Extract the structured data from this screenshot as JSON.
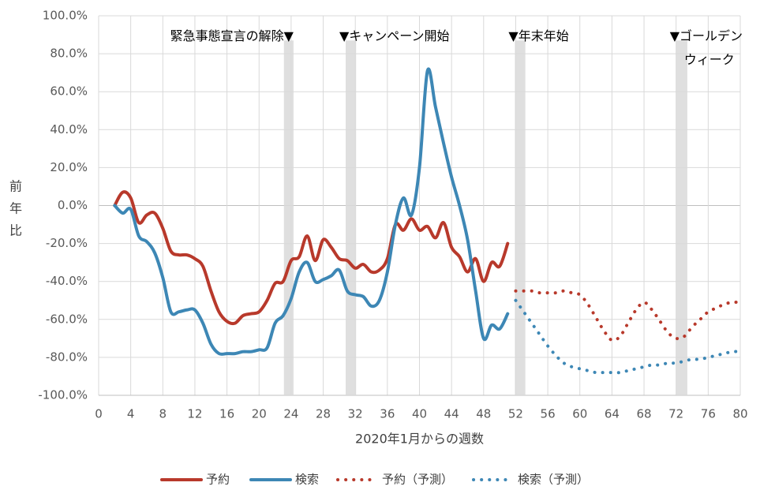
{
  "chart_data": {
    "type": "line",
    "y_label": "前年比",
    "x_label": "2020年1月からの週数",
    "xlim": [
      0,
      80
    ],
    "xticks": [
      0,
      4,
      8,
      12,
      16,
      20,
      24,
      28,
      32,
      36,
      40,
      44,
      48,
      52,
      56,
      60,
      64,
      68,
      72,
      76,
      80
    ],
    "ylim": [
      -100,
      100
    ],
    "yticks": [
      {
        "value": -100,
        "label": "-100.0%"
      },
      {
        "value": -80,
        "label": "-80.0%"
      },
      {
        "value": -60,
        "label": "-60.0%"
      },
      {
        "value": -40,
        "label": "-40.0%"
      },
      {
        "value": -20,
        "label": "-20.0%"
      },
      {
        "value": 0,
        "label": "0.0%"
      },
      {
        "value": 20,
        "label": "20.0%"
      },
      {
        "value": 40,
        "label": "40.0%"
      },
      {
        "value": 60,
        "label": "60.0%"
      },
      {
        "value": 80,
        "label": "80.0%"
      },
      {
        "value": 100,
        "label": "100.0%"
      }
    ],
    "grid": true,
    "legend": "bottom",
    "events": [
      {
        "text": [
          "緊急事態宣言の解除▼"
        ],
        "weeks": [
          23.1,
          24.3
        ],
        "align": "end"
      },
      {
        "text": [
          "▼キャンペーン開始"
        ],
        "weeks": [
          30.8,
          32.1
        ],
        "align": "start"
      },
      {
        "text": [
          "▼年末年始"
        ],
        "weeks": [
          51.9,
          53.2
        ],
        "align": "start"
      },
      {
        "text": [
          "▼ゴールデン",
          "ウィーク"
        ],
        "weeks": [
          72,
          73.4
        ],
        "align": "start"
      }
    ],
    "series": [
      {
        "name": "予約",
        "color": "#b8392b",
        "style": "solid",
        "x": [
          2,
          3,
          4,
          5,
          6,
          7,
          8,
          9,
          10,
          11,
          12,
          13,
          14,
          15,
          16,
          17,
          18,
          19,
          20,
          21,
          22,
          23,
          24,
          25,
          26,
          27,
          28,
          29,
          30,
          31,
          32,
          33,
          34,
          35,
          36,
          37,
          38,
          39,
          40,
          41,
          42,
          43,
          44,
          45,
          46,
          47,
          48,
          49,
          50,
          51
        ],
        "values": [
          0,
          7,
          4,
          -9,
          -5,
          -4,
          -12,
          -24,
          -26,
          -26,
          -28,
          -32,
          -45,
          -56,
          -61,
          -62,
          -58,
          -57,
          -56,
          -50,
          -41,
          -40,
          -29,
          -27,
          -16,
          -29,
          -18,
          -22,
          -28,
          -29,
          -33,
          -31,
          -35,
          -34,
          -28,
          -10,
          -13,
          -7,
          -13,
          -11,
          -17,
          -9,
          -22,
          -27,
          -35,
          -28,
          -40,
          -30,
          -32,
          -20
        ]
      },
      {
        "name": "検索",
        "color": "#3d87b5",
        "style": "solid",
        "x": [
          2,
          3,
          4,
          5,
          6,
          7,
          8,
          9,
          10,
          11,
          12,
          13,
          14,
          15,
          16,
          17,
          18,
          19,
          20,
          21,
          22,
          23,
          24,
          25,
          26,
          27,
          28,
          29,
          30,
          31,
          32,
          33,
          34,
          35,
          36,
          37,
          38,
          39,
          40,
          41,
          42,
          43,
          44,
          45,
          46,
          47,
          48,
          49,
          50,
          51
        ],
        "values": [
          0,
          -4,
          -2,
          -16,
          -19,
          -25,
          -38,
          -56,
          -56,
          -55,
          -55,
          -62,
          -73,
          -78,
          -78,
          -78,
          -77,
          -77,
          -76,
          -75,
          -62,
          -58,
          -49,
          -35,
          -30,
          -40,
          -39,
          -37,
          -34,
          -45,
          -47,
          -48,
          -53,
          -50,
          -35,
          -10,
          4,
          -5,
          20,
          71,
          52,
          33,
          15,
          0,
          -18,
          -45,
          -70,
          -63,
          -65,
          -57
        ]
      },
      {
        "name": "予約（予測）",
        "color": "#b8392b",
        "style": "dotted",
        "x": [
          52,
          53,
          54,
          55,
          56,
          57,
          58,
          59,
          60,
          61,
          62,
          63,
          64,
          65,
          66,
          67,
          68,
          69,
          70,
          71,
          72,
          73,
          74,
          75,
          76,
          77,
          78,
          79,
          80
        ],
        "values": [
          -45,
          -45,
          -45,
          -46,
          -46,
          -46,
          -45,
          -46,
          -47,
          -52,
          -59,
          -66,
          -71,
          -69,
          -62,
          -55,
          -51,
          -55,
          -61,
          -67,
          -70,
          -69,
          -64,
          -60,
          -56,
          -54,
          -52,
          -51,
          -51
        ]
      },
      {
        "name": "検索（予測）",
        "color": "#3d87b5",
        "style": "dotted",
        "x": [
          52,
          53,
          54,
          55,
          56,
          57,
          58,
          59,
          60,
          61,
          62,
          63,
          64,
          65,
          66,
          67,
          68,
          69,
          70,
          71,
          72,
          73,
          74,
          75,
          76,
          77,
          78,
          79,
          80
        ],
        "values": [
          -50,
          -56,
          -62,
          -68,
          -74,
          -79,
          -83,
          -85,
          -86,
          -87,
          -88,
          -88,
          -88,
          -88,
          -87,
          -86,
          -85,
          -84,
          -84,
          -83,
          -83,
          -82,
          -81,
          -81,
          -80,
          -79,
          -78,
          -77,
          -77
        ]
      }
    ]
  }
}
